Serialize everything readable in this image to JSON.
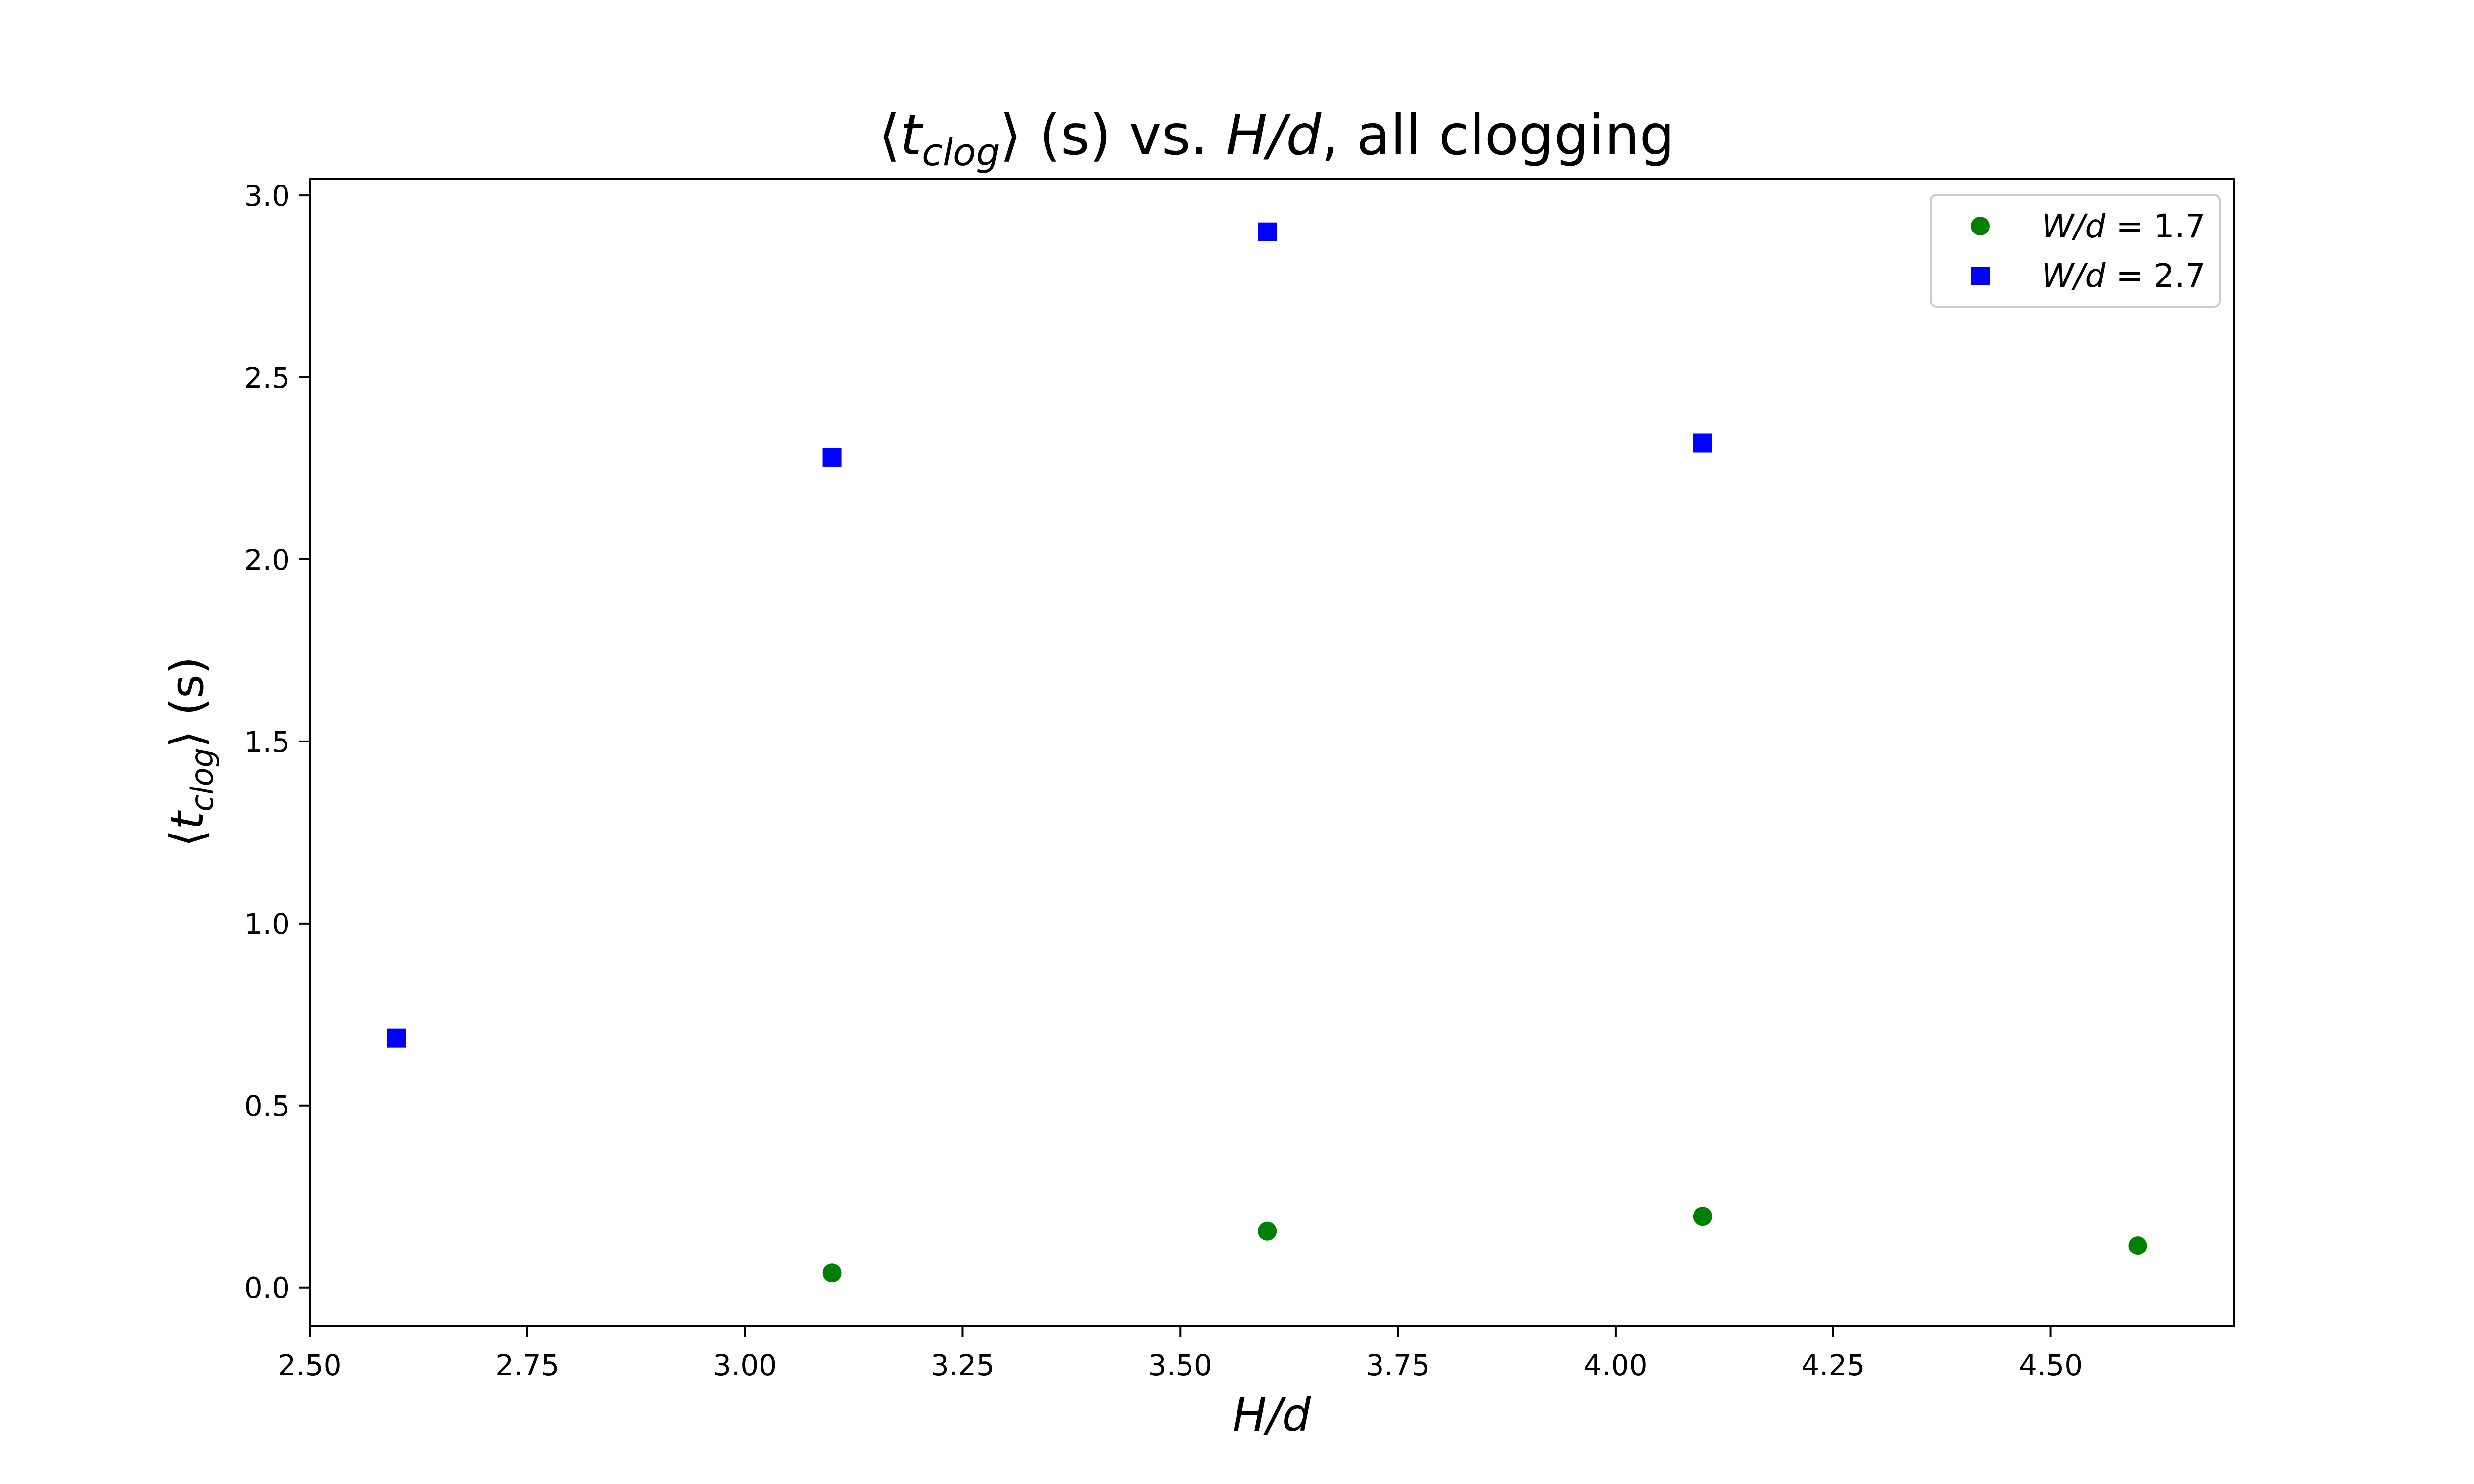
{
  "chart_data": {
    "type": "scatter",
    "title": {
      "pre": "⟨",
      "var": "t",
      "sub": "clog",
      "post": "⟩ (s) vs. ",
      "var2": "H/d",
      "tail": ", all clogging"
    },
    "xlabel": "H/d",
    "ylabel": {
      "pre": "⟨",
      "var": "t",
      "sub": "clog",
      "post": "⟩ (s)"
    },
    "xlim": [
      2.5,
      4.71
    ],
    "ylim": [
      -0.105,
      3.045
    ],
    "xticks": [
      2.5,
      2.75,
      3.0,
      3.25,
      3.5,
      3.75,
      4.0,
      4.25,
      4.5
    ],
    "xtick_labels": [
      "2.50",
      "2.75",
      "3.00",
      "3.25",
      "3.50",
      "3.75",
      "4.00",
      "4.25",
      "4.50"
    ],
    "yticks": [
      0.0,
      0.5,
      1.0,
      1.5,
      2.0,
      2.5,
      3.0
    ],
    "ytick_labels": [
      "0.0",
      "0.5",
      "1.0",
      "1.5",
      "2.0",
      "2.5",
      "3.0"
    ],
    "grid": false,
    "legend_position": "top-right",
    "series": [
      {
        "name": {
          "var": "W/d",
          "rest": " = 1.7"
        },
        "marker": "circle",
        "color": "#008000",
        "points": [
          {
            "x": 3.1,
            "y": 0.04
          },
          {
            "x": 3.6,
            "y": 0.155
          },
          {
            "x": 4.1,
            "y": 0.195
          },
          {
            "x": 4.6,
            "y": 0.115
          }
        ]
      },
      {
        "name": {
          "var": "W/d",
          "rest": " = 2.7"
        },
        "marker": "square",
        "color": "#0000ff",
        "points": [
          {
            "x": 2.6,
            "y": 0.685
          },
          {
            "x": 3.1,
            "y": 2.28
          },
          {
            "x": 3.6,
            "y": 2.9
          },
          {
            "x": 4.1,
            "y": 2.32
          }
        ]
      }
    ]
  }
}
